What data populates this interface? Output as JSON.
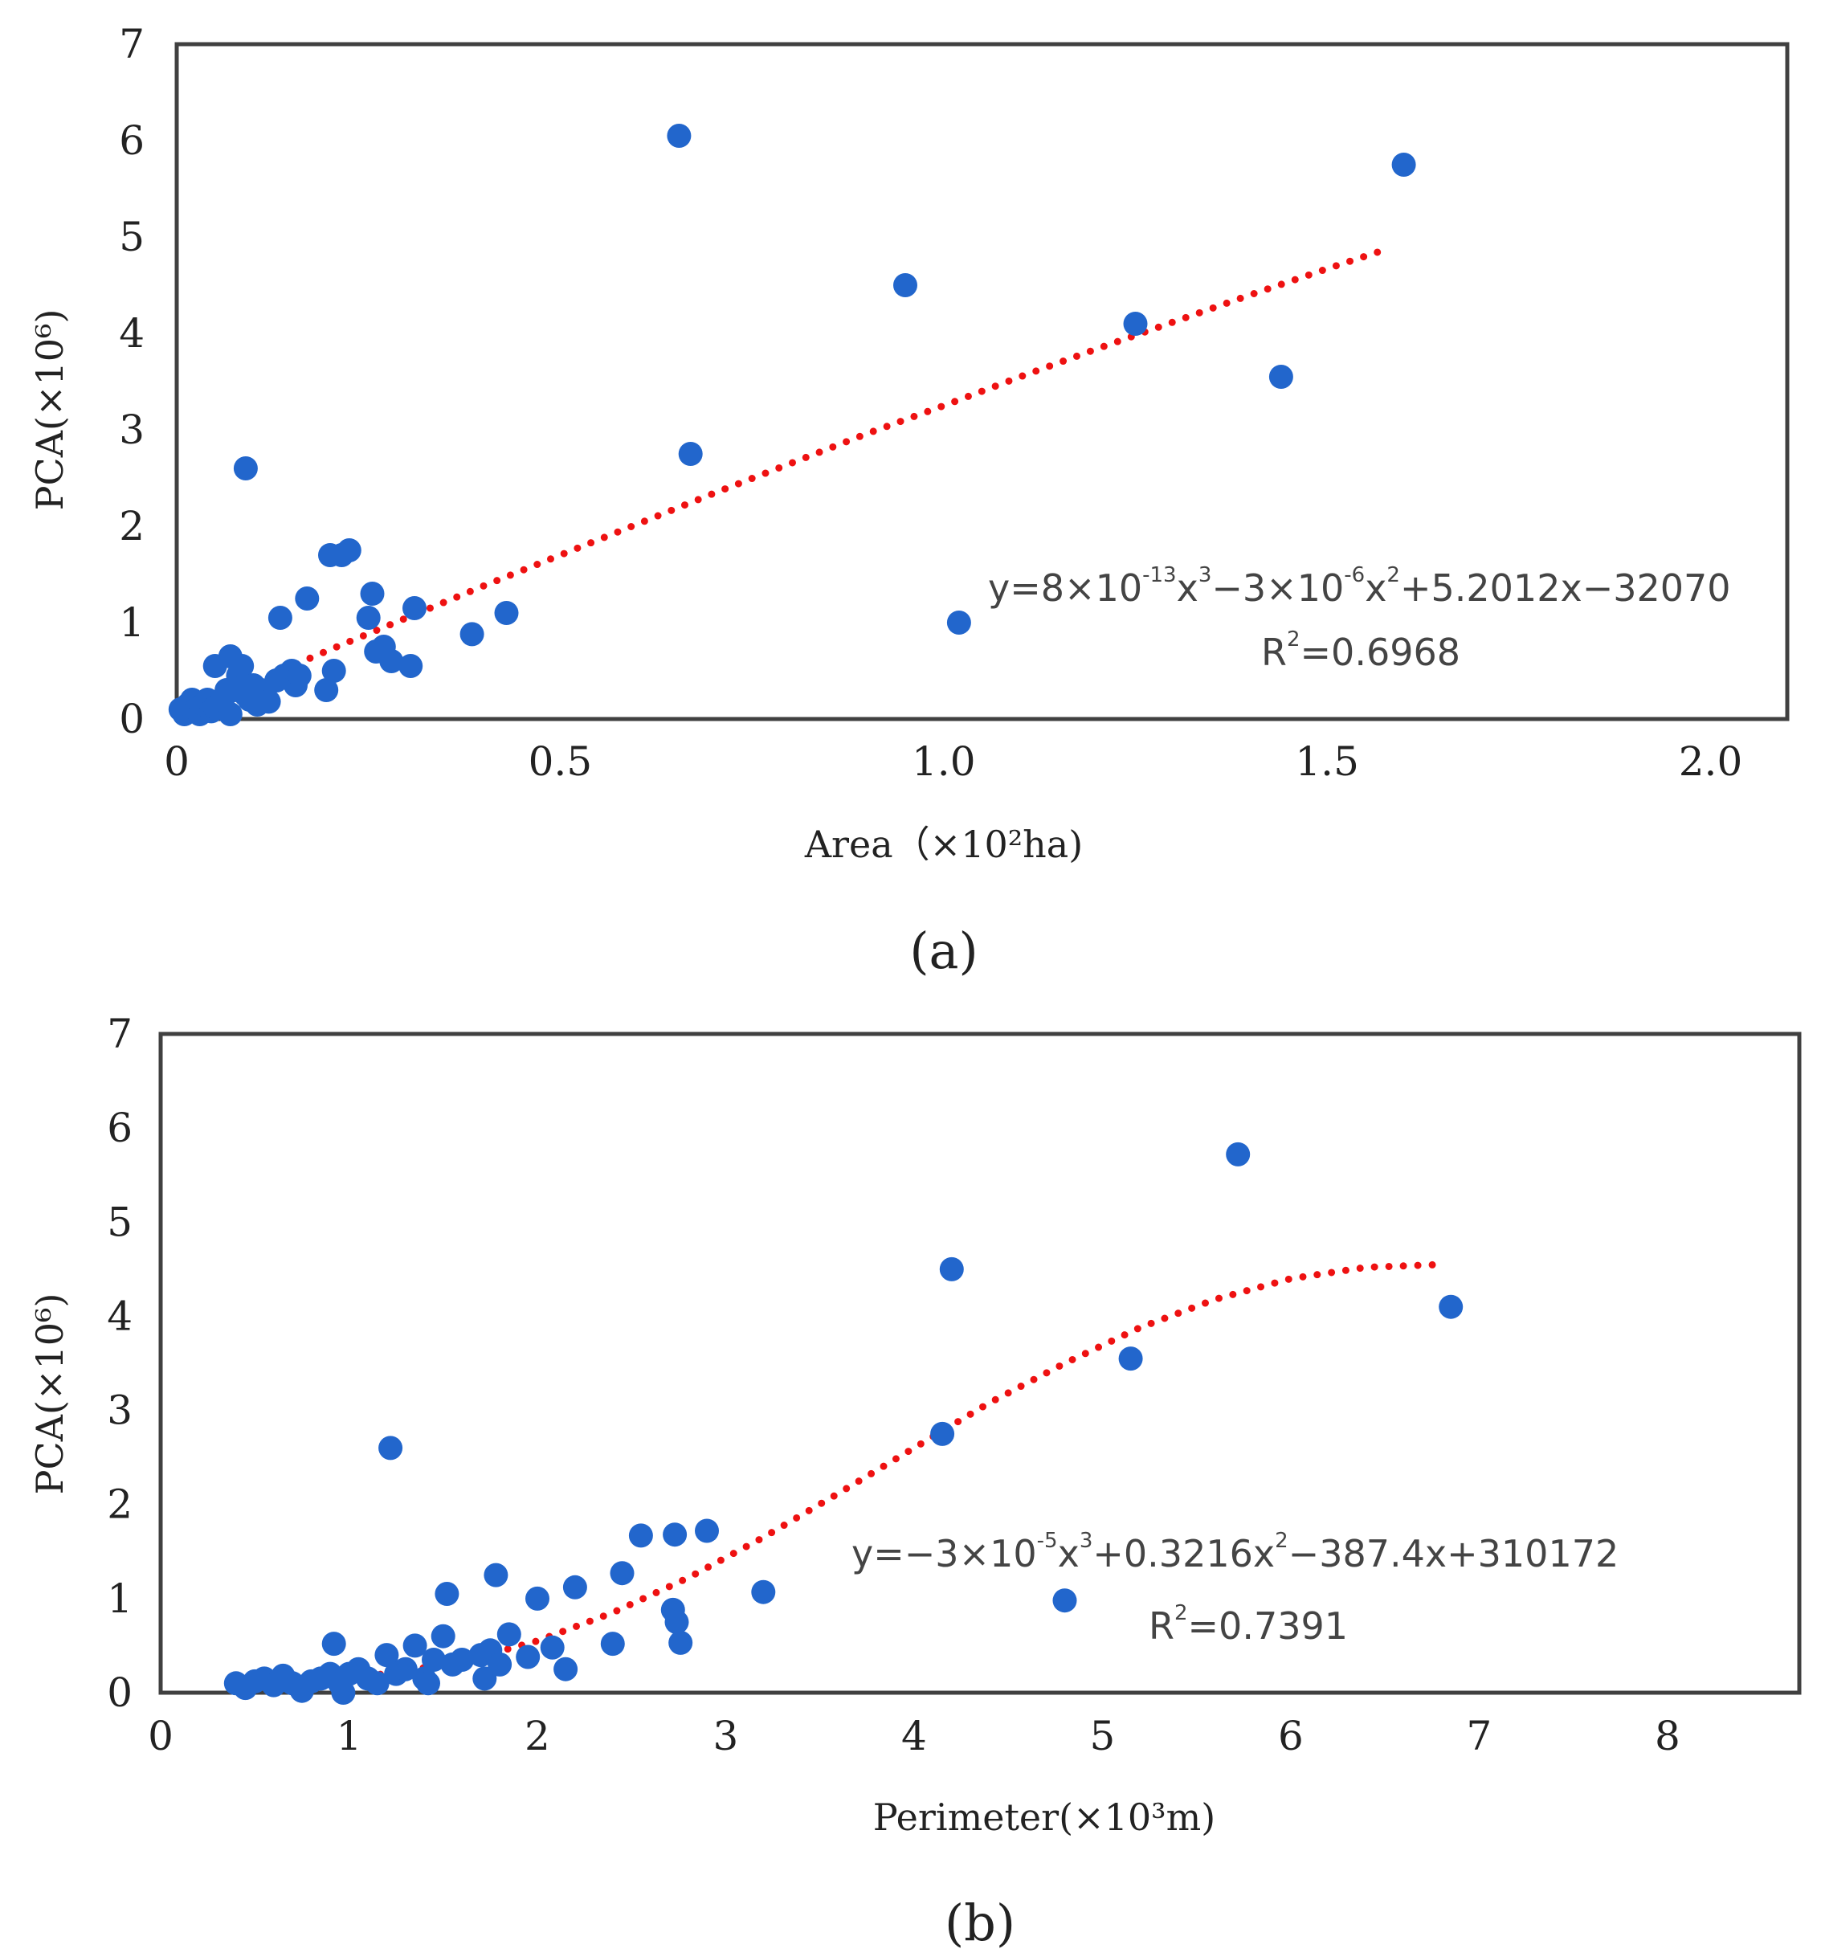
{
  "chart_data": [
    {
      "type": "scatter",
      "caption": "(a)",
      "xlabel": "Area（×10²ha)",
      "ylabel": "PCA(×10⁶)",
      "xlim": [
        0,
        2.1
      ],
      "ylim": [
        0,
        7
      ],
      "xticks": [
        "0",
        "0.5",
        "1.0",
        "1.5",
        "2.0"
      ],
      "xtick_values": [
        0,
        0.5,
        1.0,
        1.5,
        2.0
      ],
      "yticks": [
        "0",
        "1",
        "2",
        "3",
        "4",
        "5",
        "6",
        "7"
      ],
      "ytick_values": [
        0,
        1,
        2,
        3,
        4,
        5,
        6,
        7
      ],
      "grid": false,
      "legend": "none",
      "point_color": "#2266cc",
      "trend_color": "#ee1111",
      "equation": {
        "parts": [
          "y=8×10",
          "-13",
          "x",
          "3",
          "−3×10",
          "-6",
          "x",
          "2",
          "+5.2012x−32070"
        ],
        "r2": [
          "R",
          "2",
          "=0.6968"
        ]
      },
      "series": [
        {
          "points": [
            [
              0.005,
              0.1
            ],
            [
              0.01,
              0.05
            ],
            [
              0.015,
              0.15
            ],
            [
              0.02,
              0.2
            ],
            [
              0.025,
              0.1
            ],
            [
              0.03,
              0.05
            ],
            [
              0.035,
              0.15
            ],
            [
              0.04,
              0.2
            ],
            [
              0.045,
              0.08
            ],
            [
              0.05,
              0.12
            ],
            [
              0.05,
              0.55
            ],
            [
              0.06,
              0.2
            ],
            [
              0.065,
              0.3
            ],
            [
              0.07,
              0.05
            ],
            [
              0.07,
              0.65
            ],
            [
              0.075,
              0.3
            ],
            [
              0.08,
              0.45
            ],
            [
              0.085,
              0.55
            ],
            [
              0.09,
              0.25
            ],
            [
              0.095,
              0.2
            ],
            [
              0.09,
              2.6
            ],
            [
              0.1,
              0.35
            ],
            [
              0.105,
              0.15
            ],
            [
              0.11,
              0.3
            ],
            [
              0.115,
              0.25
            ],
            [
              0.12,
              0.18
            ],
            [
              0.13,
              0.4
            ],
            [
              0.135,
              1.05
            ],
            [
              0.14,
              0.45
            ],
            [
              0.15,
              0.5
            ],
            [
              0.155,
              0.35
            ],
            [
              0.16,
              0.45
            ],
            [
              0.17,
              1.25
            ],
            [
              0.195,
              0.3
            ],
            [
              0.2,
              1.7
            ],
            [
              0.205,
              0.5
            ],
            [
              0.215,
              1.7
            ],
            [
              0.225,
              1.75
            ],
            [
              0.25,
              1.05
            ],
            [
              0.255,
              1.3
            ],
            [
              0.26,
              0.7
            ],
            [
              0.27,
              0.75
            ],
            [
              0.28,
              0.6
            ],
            [
              0.305,
              0.55
            ],
            [
              0.31,
              1.15
            ],
            [
              0.385,
              0.88
            ],
            [
              0.43,
              1.1
            ],
            [
              0.655,
              6.05
            ],
            [
              0.67,
              2.75
            ],
            [
              0.95,
              4.5
            ],
            [
              1.02,
              1.0
            ],
            [
              1.25,
              4.1
            ],
            [
              1.44,
              3.55
            ],
            [
              1.6,
              5.75
            ]
          ]
        }
      ],
      "trend": {
        "x": [
          0.0,
          0.1,
          0.2,
          0.3,
          0.4,
          0.5,
          0.6,
          0.7,
          0.8,
          0.9,
          1.0,
          1.1,
          1.2,
          1.3,
          1.4,
          1.5,
          1.58
        ],
        "y": [
          0.05,
          0.38,
          0.72,
          1.05,
          1.38,
          1.7,
          2.02,
          2.34,
          2.65,
          2.96,
          3.25,
          3.55,
          3.84,
          4.12,
          4.4,
          4.67,
          4.88
        ]
      }
    },
    {
      "type": "scatter",
      "caption": "(b)",
      "xlabel": "Perimeter(×10³m)",
      "ylabel": "PCA(×10⁶)",
      "xlim": [
        0,
        8.7
      ],
      "ylim": [
        0,
        7
      ],
      "xticks": [
        "0",
        "1",
        "2",
        "3",
        "4",
        "5",
        "6",
        "7",
        "8"
      ],
      "xtick_values": [
        0,
        1,
        2,
        3,
        4,
        5,
        6,
        7,
        8
      ],
      "yticks": [
        "0",
        "1",
        "2",
        "3",
        "4",
        "5",
        "6",
        "7"
      ],
      "ytick_values": [
        0,
        1,
        2,
        3,
        4,
        5,
        6,
        7
      ],
      "grid": false,
      "legend": "none",
      "point_color": "#2266cc",
      "trend_color": "#ee1111",
      "equation": {
        "parts": [
          "y=−3×10",
          "-5",
          "x",
          "3",
          "+0.3216x",
          "2",
          "−387.4x+310172"
        ],
        "r2": [
          "R",
          "2",
          "=0.7391"
        ]
      },
      "series": [
        {
          "points": [
            [
              0.4,
              0.1
            ],
            [
              0.45,
              0.05
            ],
            [
              0.5,
              0.12
            ],
            [
              0.55,
              0.15
            ],
            [
              0.6,
              0.08
            ],
            [
              0.65,
              0.18
            ],
            [
              0.7,
              0.1
            ],
            [
              0.75,
              0.02
            ],
            [
              0.8,
              0.12
            ],
            [
              0.85,
              0.15
            ],
            [
              0.9,
              0.2
            ],
            [
              0.92,
              0.52
            ],
            [
              0.95,
              0.1
            ],
            [
              0.97,
              0.0
            ],
            [
              1.0,
              0.2
            ],
            [
              1.05,
              0.25
            ],
            [
              1.1,
              0.15
            ],
            [
              1.15,
              0.1
            ],
            [
              1.2,
              0.4
            ],
            [
              1.22,
              2.6
            ],
            [
              1.25,
              0.2
            ],
            [
              1.3,
              0.25
            ],
            [
              1.35,
              0.5
            ],
            [
              1.4,
              0.15
            ],
            [
              1.42,
              0.1
            ],
            [
              1.45,
              0.35
            ],
            [
              1.5,
              0.6
            ],
            [
              1.52,
              1.05
            ],
            [
              1.55,
              0.3
            ],
            [
              1.6,
              0.35
            ],
            [
              1.7,
              0.4
            ],
            [
              1.72,
              0.15
            ],
            [
              1.75,
              0.45
            ],
            [
              1.78,
              1.25
            ],
            [
              1.8,
              0.3
            ],
            [
              1.85,
              0.62
            ],
            [
              1.95,
              0.38
            ],
            [
              2.0,
              1.0
            ],
            [
              2.08,
              0.48
            ],
            [
              2.15,
              0.25
            ],
            [
              2.2,
              1.12
            ],
            [
              2.4,
              0.52
            ],
            [
              2.45,
              1.27
            ],
            [
              2.55,
              1.67
            ],
            [
              2.72,
              0.88
            ],
            [
              2.73,
              1.68
            ],
            [
              2.74,
              0.75
            ],
            [
              2.76,
              0.53
            ],
            [
              2.9,
              1.72
            ],
            [
              3.2,
              1.07
            ],
            [
              4.15,
              2.75
            ],
            [
              4.2,
              4.5
            ],
            [
              4.8,
              0.98
            ],
            [
              5.15,
              3.55
            ],
            [
              5.72,
              5.72
            ],
            [
              6.85,
              4.1
            ]
          ]
        }
      ],
      "trend": {
        "x": [
          0.4,
          0.8,
          1.2,
          1.6,
          2.0,
          2.4,
          2.8,
          3.2,
          3.6,
          4.0,
          4.4,
          4.8,
          5.2,
          5.6,
          6.0,
          6.4,
          6.8
        ],
        "y": [
          0.15,
          0.14,
          0.2,
          0.33,
          0.55,
          0.85,
          1.22,
          1.65,
          2.12,
          2.6,
          3.08,
          3.5,
          3.88,
          4.18,
          4.4,
          4.52,
          4.55
        ]
      }
    }
  ]
}
